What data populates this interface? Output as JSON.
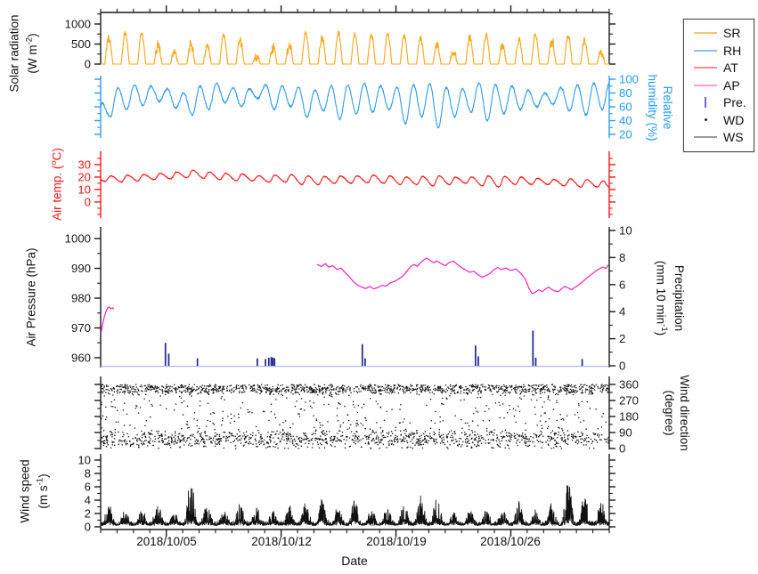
{
  "figure": {
    "background": "#ffffff"
  },
  "labels": {
    "sr": {
      "l1": "Solar radiation",
      "l2pre": "(W m",
      "l2sup": "-2",
      "l2post": ")"
    },
    "rh": {
      "l1": "Relative",
      "l2": "humidity (%)"
    },
    "at": {
      "l1pre": "Air temp. (",
      "l1sup": "o",
      "l1post": "C)"
    },
    "ap": {
      "l1": "Air Pressure (hPa)"
    },
    "pre": {
      "l1": "Precipitation",
      "l2pre": "(mm 10 min",
      "l2sup": "-1",
      "l2post": ")"
    },
    "wd": {
      "l1": "Wind direction",
      "l2": "(degree)"
    },
    "ws": {
      "l1": "Wind speed",
      "l2pre": "(m s",
      "l2sup": "-1",
      "l2post": ")"
    },
    "x": {
      "label": "Date"
    }
  },
  "xticks": [
    {
      "day": 4,
      "label": "2018/10/05"
    },
    {
      "day": 11,
      "label": "2018/10/12"
    },
    {
      "day": 18,
      "label": "2018/10/19"
    },
    {
      "day": 25,
      "label": "2018/10/26"
    }
  ],
  "axes": {
    "x": {
      "days_total": 31,
      "minor_step_days": 1,
      "major_days": [
        4,
        11,
        18,
        25
      ]
    },
    "sr": {
      "color": "#1a1a1a",
      "label_color": "#1a1a1a",
      "major": [
        0,
        500,
        1000
      ],
      "minor": [
        250,
        750,
        1250
      ]
    },
    "rh": {
      "color": "#2e9bf7",
      "label_color": "#1f9bff",
      "major": [
        20,
        40,
        60,
        80,
        100
      ],
      "minor": [
        30,
        50,
        70,
        90
      ]
    },
    "at": {
      "color": "#fb1616",
      "label_color": "#fb1616",
      "major": [
        0,
        10,
        20,
        30
      ],
      "minor": [
        -10,
        -5,
        5,
        15,
        25,
        35
      ]
    },
    "ap": {
      "color": "#1a1a1a",
      "label_color": "#1a1a1a",
      "major": [
        960,
        970,
        980,
        990,
        1000
      ],
      "minor": [
        965,
        975,
        985,
        995
      ]
    },
    "pre": {
      "color": "#1a1a1a",
      "label_color": "#1a1a1a",
      "major": [
        0,
        2,
        4,
        6,
        8,
        10
      ],
      "minor": [
        1,
        3,
        5,
        7,
        9
      ]
    },
    "wd": {
      "color": "#1a1a1a",
      "label_color": "#1a1a1a",
      "major": [
        0,
        90,
        180,
        270,
        360
      ],
      "minor": [
        45,
        135,
        225,
        315
      ]
    },
    "ws": {
      "color": "#1a1a1a",
      "label_color": "#1a1a1a",
      "major": [
        0,
        2,
        4,
        6,
        8,
        10
      ],
      "minor": [
        1,
        3,
        5,
        7,
        9
      ]
    }
  },
  "legend": {
    "entries": [
      {
        "label": "SR",
        "swatch": "line",
        "color": "#ffc07a"
      },
      {
        "label": "RH",
        "swatch": "line",
        "color": "#86c1fa"
      },
      {
        "label": "AT",
        "swatch": "line",
        "color": "#f98f8f"
      },
      {
        "label": "AP",
        "swatch": "line",
        "color": "#fb9edb"
      },
      {
        "label": "Pre.",
        "swatch": "vbar",
        "color": "#6a6ad1"
      },
      {
        "label": "WD",
        "swatch": "dot",
        "color": "#222222"
      },
      {
        "label": "WS",
        "swatch": "line",
        "color": "#9a9a9a"
      }
    ]
  },
  "chart_data": {
    "type": "multi-panel-timeseries",
    "x_start_date": "2018/10/01",
    "x_range_days": [
      0,
      31
    ],
    "panels": [
      {
        "id": "sr",
        "name": "Solar radiation",
        "type": "line",
        "color": "#ffa413",
        "unit": "W m-2",
        "ylim": [
          0,
          1288
        ],
        "daily_peak": [
          830,
          890,
          900,
          630,
          460,
          700,
          660,
          830,
          760,
          300,
          570,
          650,
          860,
          780,
          860,
          810,
          820,
          820,
          800,
          760,
          610,
          470,
          790,
          810,
          620,
          760,
          830,
          810,
          840,
          700,
          420
        ],
        "daily_cloudiness": [
          0.35,
          0.25,
          0.3,
          0.5,
          0.65,
          0.5,
          0.5,
          0.25,
          0.35,
          0.7,
          0.55,
          0.5,
          0.2,
          0.3,
          0.2,
          0.15,
          0.2,
          0.15,
          0.2,
          0.25,
          0.45,
          0.6,
          0.3,
          0.2,
          0.5,
          0.3,
          0.2,
          0.4,
          0.25,
          0.3,
          0.55
        ],
        "noise_seed": 5
      },
      {
        "id": "rh",
        "name": "Relative humidity",
        "type": "line",
        "color": "#2e9bf5",
        "unit": "%",
        "ylim": [
          14.8,
          105.2
        ],
        "daily_high": [
          66,
          88,
          92,
          90,
          86,
          80,
          90,
          94,
          88,
          86,
          92,
          90,
          88,
          84,
          90,
          92,
          94,
          90,
          88,
          92,
          94,
          88,
          86,
          94,
          92,
          90,
          84,
          80,
          88,
          92,
          94
        ],
        "daily_low": [
          45,
          56,
          62,
          68,
          58,
          48,
          56,
          66,
          60,
          72,
          56,
          60,
          45,
          54,
          42,
          50,
          52,
          56,
          36,
          46,
          30,
          46,
          52,
          40,
          50,
          56,
          60,
          64,
          54,
          48,
          56
        ],
        "noise_seed": 6
      },
      {
        "id": "at",
        "name": "Air temperature",
        "type": "line",
        "color": "#ff1414",
        "unit": "degC",
        "ylim": [
          -12.9,
          40.7
        ],
        "daily_high": [
          21,
          21.5,
          22,
          23,
          24,
          25.5,
          24,
          23,
          22.5,
          21,
          21.5,
          22,
          21,
          20.5,
          21,
          21,
          21.5,
          21,
          20,
          20.5,
          21,
          20,
          20,
          21,
          20.5,
          20,
          19,
          18,
          18.5,
          18,
          17
        ],
        "daily_low": [
          16.5,
          16,
          17,
          18,
          18.5,
          19.5,
          19,
          18,
          17,
          17,
          16,
          16,
          14,
          14,
          15,
          15,
          15.5,
          15,
          14,
          14,
          13,
          14,
          15,
          13,
          12,
          14,
          14,
          14,
          13,
          12,
          12
        ],
        "noise_seed": 9
      },
      {
        "id": "ap",
        "name": "Air pressure",
        "type": "line",
        "color": "#f41ec4",
        "unit": "hPa",
        "ylim": [
          956.7,
          1003.9
        ],
        "segments": [
          [
            [
              0.02,
              968.3
            ],
            [
              0.1,
              970.5
            ],
            [
              0.2,
              973.2
            ],
            [
              0.3,
              975.2
            ],
            [
              0.42,
              976.6
            ],
            [
              0.52,
              977.1
            ],
            [
              0.62,
              976.4
            ],
            [
              0.72,
              976.8
            ],
            [
              0.8,
              976.3
            ]
          ],
          [
            [
              13.2,
              991.3
            ],
            [
              13.45,
              990.6
            ],
            [
              13.7,
              991.6
            ],
            [
              13.9,
              990.4
            ],
            [
              14.15,
              990.9
            ],
            [
              14.4,
              989.6
            ],
            [
              14.65,
              990.1
            ],
            [
              14.9,
              988.6
            ],
            [
              15.15,
              987.2
            ],
            [
              15.4,
              985.6
            ],
            [
              15.65,
              984.4
            ],
            [
              15.9,
              983.7
            ],
            [
              16.15,
              983.2
            ],
            [
              16.4,
              983.9
            ],
            [
              16.65,
              983.1
            ],
            [
              16.9,
              983.6
            ],
            [
              17.15,
              984.3
            ],
            [
              17.4,
              984.0
            ],
            [
              17.65,
              985.1
            ],
            [
              17.9,
              985.6
            ],
            [
              18.15,
              986.4
            ],
            [
              18.4,
              987.3
            ],
            [
              18.65,
              988.9
            ],
            [
              18.9,
              990.6
            ],
            [
              19.1,
              991.3
            ],
            [
              19.3,
              990.7
            ],
            [
              19.5,
              991.9
            ],
            [
              19.7,
              992.9
            ],
            [
              19.9,
              993.4
            ],
            [
              20.1,
              992.6
            ],
            [
              20.3,
              991.9
            ],
            [
              20.5,
              992.5
            ],
            [
              20.75,
              991.6
            ],
            [
              21.0,
              990.9
            ],
            [
              21.25,
              992.0
            ],
            [
              21.5,
              992.4
            ],
            [
              21.75,
              991.3
            ],
            [
              22.0,
              990.3
            ],
            [
              22.25,
              989.4
            ],
            [
              22.5,
              988.7
            ],
            [
              22.75,
              989.0
            ],
            [
              23.0,
              987.9
            ],
            [
              23.25,
              987.0
            ],
            [
              23.5,
              987.6
            ],
            [
              23.75,
              988.4
            ],
            [
              24.0,
              989.7
            ],
            [
              24.2,
              990.3
            ],
            [
              24.4,
              989.6
            ],
            [
              24.7,
              990.1
            ],
            [
              25.0,
              989.3
            ],
            [
              25.3,
              989.8
            ],
            [
              25.6,
              988.4
            ],
            [
              25.9,
              986.2
            ],
            [
              26.1,
              983.4
            ],
            [
              26.3,
              981.5
            ],
            [
              26.5,
              982.0
            ],
            [
              26.7,
              982.8
            ],
            [
              26.9,
              982.2
            ],
            [
              27.1,
              983.0
            ],
            [
              27.3,
              983.7
            ],
            [
              27.5,
              982.9
            ],
            [
              27.7,
              982.4
            ],
            [
              27.9,
              982.2
            ],
            [
              28.1,
              983.2
            ],
            [
              28.3,
              984.0
            ],
            [
              28.5,
              983.4
            ],
            [
              28.7,
              982.8
            ],
            [
              28.9,
              983.6
            ],
            [
              29.1,
              984.3
            ],
            [
              29.4,
              985.6
            ],
            [
              29.7,
              987.1
            ],
            [
              30.0,
              988.3
            ],
            [
              30.3,
              989.6
            ],
            [
              30.6,
              990.4
            ],
            [
              30.8,
              990.0
            ],
            [
              30.95,
              991.2
            ]
          ]
        ]
      },
      {
        "id": "pre",
        "name": "Precipitation",
        "type": "bar",
        "color": "#23238f",
        "baseline_color": "#b0b6e8",
        "unit": "mm 10 min-1",
        "ylim": [
          -0.13,
          10.26
        ],
        "events": [
          [
            3.95,
            1.7
          ],
          [
            4.15,
            0.9
          ],
          [
            5.9,
            0.55
          ],
          [
            9.55,
            0.55
          ],
          [
            10.05,
            0.5
          ],
          [
            10.25,
            0.6
          ],
          [
            10.4,
            0.65
          ],
          [
            10.5,
            0.6
          ],
          [
            10.6,
            0.55
          ],
          [
            15.95,
            1.6
          ],
          [
            16.12,
            0.55
          ],
          [
            22.85,
            1.5
          ],
          [
            23.02,
            0.7
          ],
          [
            26.35,
            2.6
          ],
          [
            26.52,
            0.6
          ],
          [
            29.35,
            0.5
          ]
        ]
      },
      {
        "id": "wd",
        "name": "Wind direction",
        "type": "scatter",
        "color": "#111111",
        "unit": "degree",
        "ylim": [
          -5,
          405
        ],
        "n_points": 2800,
        "seed": 7,
        "bands": [
          {
            "weight": 0.44,
            "center": 335,
            "spread": 30
          },
          {
            "weight": 0.36,
            "center": 55,
            "spread": 46
          },
          {
            "weight": 0.2,
            "uniform": [
              0,
              360
            ]
          }
        ]
      },
      {
        "id": "ws",
        "name": "Wind speed",
        "type": "line",
        "color": "#111111",
        "unit": "m s-1",
        "ylim": [
          -0.4,
          10.93
        ],
        "daily_peak": [
          3.0,
          1.8,
          2.2,
          2.8,
          2.0,
          6.8,
          2.8,
          2.0,
          3.0,
          2.4,
          2.0,
          2.6,
          3.4,
          3.6,
          2.4,
          4.0,
          2.2,
          2.4,
          3.0,
          4.6,
          4.2,
          2.2,
          2.4,
          2.0,
          2.2,
          3.6,
          2.2,
          3.2,
          6.5,
          4.4,
          3.4
        ],
        "seed": 11
      }
    ]
  }
}
